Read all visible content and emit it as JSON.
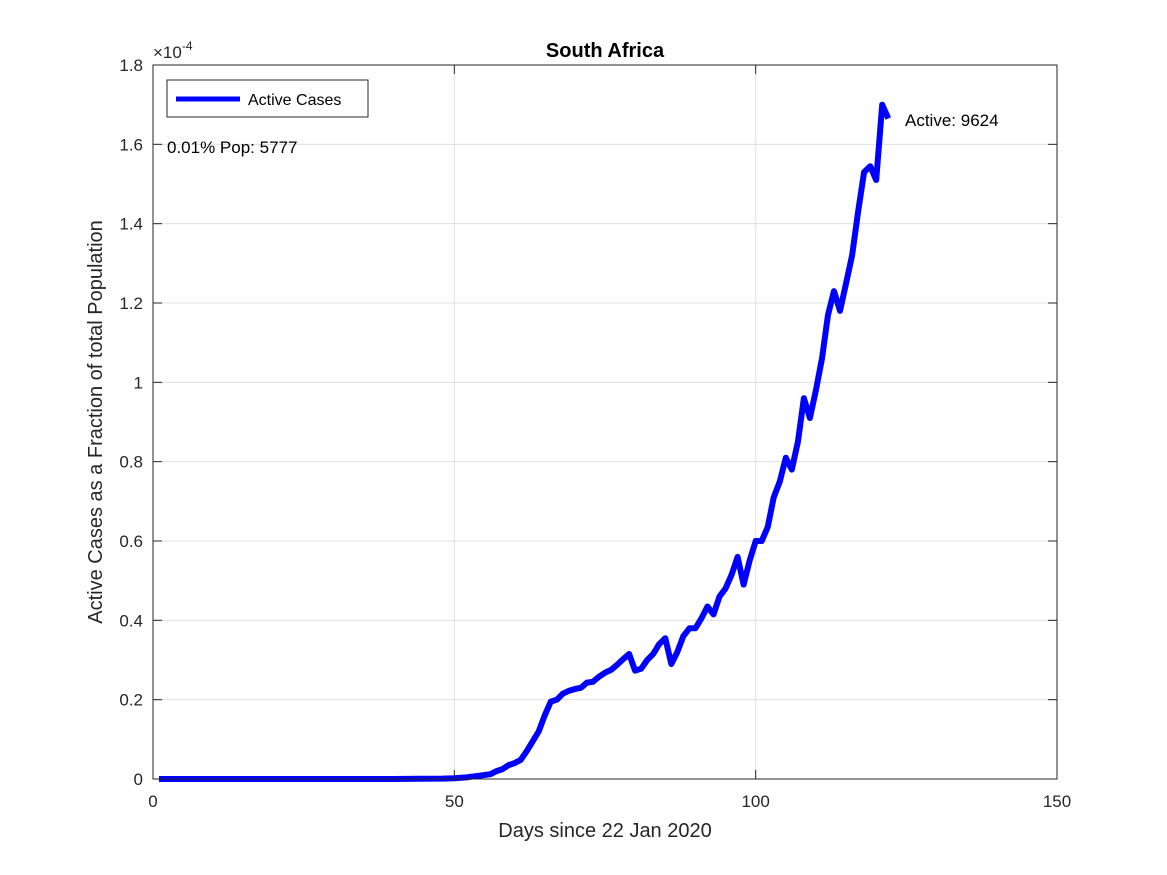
{
  "chart_data": {
    "type": "line",
    "title": "South Africa",
    "xlabel": "Days since 22 Jan 2020",
    "ylabel": "Active Cases as a Fraction of total Population",
    "xlim": [
      0,
      150
    ],
    "ylim": [
      0,
      1.8
    ],
    "y_exponent_label": "×10",
    "y_exponent_power": "-4",
    "x_ticks": [
      0,
      50,
      100,
      150
    ],
    "x_tick_labels": [
      "0",
      "50",
      "100",
      "150"
    ],
    "y_ticks": [
      0,
      0.2,
      0.4,
      0.6,
      0.8,
      1.0,
      1.2,
      1.4,
      1.6,
      1.8
    ],
    "y_tick_labels": [
      "0",
      "0.2",
      "0.4",
      "0.6",
      "0.8",
      "1",
      "1.2",
      "1.4",
      "1.6",
      "1.8"
    ],
    "grid": true,
    "legend": {
      "location": "top-left",
      "entries": [
        "Active Cases"
      ]
    },
    "annotations": {
      "population_note": "0.01% Pop: 5777",
      "active_note": "Active: 9624"
    },
    "series": [
      {
        "name": "Active Cases",
        "color": "#0000ff",
        "x": [
          1,
          10,
          20,
          30,
          40,
          44,
          48,
          50,
          52,
          54,
          55,
          56,
          57,
          58,
          59,
          60,
          61,
          62,
          63,
          64,
          65,
          66,
          67,
          68,
          69,
          70,
          71,
          72,
          73,
          74,
          75,
          76,
          77,
          78,
          79,
          80,
          81,
          82,
          83,
          84,
          85,
          86,
          87,
          88,
          89,
          90,
          91,
          92,
          93,
          94,
          95,
          96,
          97,
          98,
          99,
          100,
          101,
          102,
          103,
          104,
          105,
          106,
          107,
          108,
          109,
          110,
          111,
          112,
          113,
          114,
          115,
          116,
          117,
          118,
          119,
          120,
          121,
          122
        ],
        "y": [
          0,
          0,
          0,
          0,
          0,
          0.0005,
          0.001,
          0.002,
          0.004,
          0.008,
          0.01,
          0.012,
          0.02,
          0.025,
          0.035,
          0.04,
          0.048,
          0.07,
          0.095,
          0.12,
          0.16,
          0.195,
          0.2,
          0.215,
          0.222,
          0.227,
          0.23,
          0.243,
          0.245,
          0.258,
          0.268,
          0.275,
          0.288,
          0.302,
          0.315,
          0.273,
          0.278,
          0.3,
          0.315,
          0.34,
          0.355,
          0.29,
          0.32,
          0.36,
          0.38,
          0.38,
          0.405,
          0.435,
          0.415,
          0.46,
          0.48,
          0.515,
          0.56,
          0.49,
          0.55,
          0.6,
          0.6,
          0.635,
          0.71,
          0.75,
          0.81,
          0.78,
          0.85,
          0.96,
          0.91,
          0.98,
          1.06,
          1.17,
          1.23,
          1.18,
          1.25,
          1.32,
          1.43,
          1.53,
          1.545,
          1.51,
          1.7,
          1.665
        ]
      }
    ]
  }
}
